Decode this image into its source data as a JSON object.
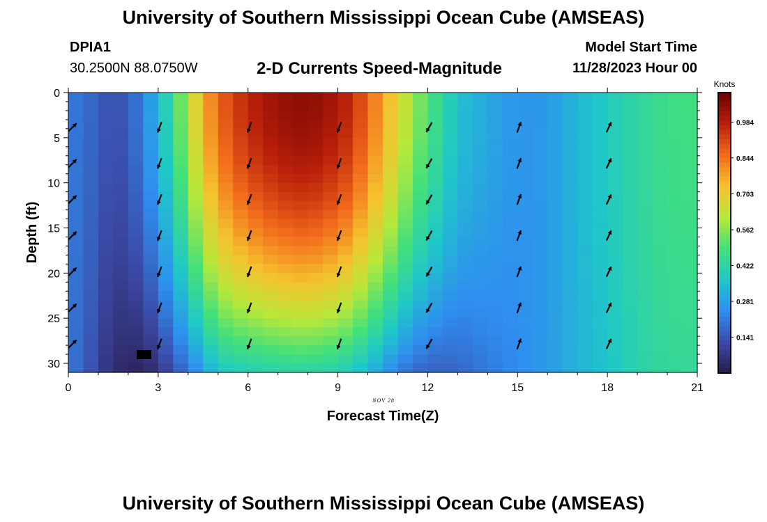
{
  "header": {
    "title": "University of Southern Mississippi Ocean Cube (AMSEAS)",
    "station": "DPIA1",
    "coordinates": "30.2500N  88.0750W",
    "plot_title": "2-D Currents Speed-Magnitude",
    "model_start_label": "Model Start Time",
    "model_start_time": "11/28/2023 Hour 00"
  },
  "footer": {
    "title": "University of Southern Mississippi Ocean Cube (AMSEAS)"
  },
  "colors": {
    "scale": [
      "#2a1a4a",
      "#3b4ba8",
      "#2f8ef0",
      "#1fc8c8",
      "#44e07a",
      "#b8e83a",
      "#f5c22e",
      "#f26a1b",
      "#b81f0a",
      "#6b0000"
    ]
  },
  "chart_data": {
    "type": "heatmap",
    "title": "2-D Currents Speed-Magnitude",
    "xlabel": "Forecast Time(Z)",
    "ylabel": "Depth (ft)",
    "date_label": "NOV 28",
    "x_ticks": [
      0,
      3,
      6,
      9,
      12,
      15,
      18,
      21
    ],
    "y_ticks": [
      0,
      5,
      10,
      15,
      20,
      25,
      30
    ],
    "xlim": [
      0,
      21
    ],
    "ylim": [
      0,
      31
    ],
    "colorbar": {
      "unit": "Knots",
      "ticks": [
        "0.984",
        "0.844",
        "0.703",
        "0.562",
        "0.422",
        "0.281",
        "0.141"
      ],
      "tick_values": [
        0.984,
        0.844,
        0.703,
        0.562,
        0.422,
        0.281,
        0.141
      ],
      "range": [
        0,
        1.1
      ]
    },
    "speed_profiles": [
      {
        "hour": 0,
        "surface": 0.2,
        "bottom": 0.2
      },
      {
        "hour": 0.5,
        "surface": 0.2,
        "bottom": 0.17
      },
      {
        "hour": 1,
        "surface": 0.15,
        "bottom": 0.1
      },
      {
        "hour": 1.5,
        "surface": 0.13,
        "bottom": 0.05
      },
      {
        "hour": 2,
        "surface": 0.15,
        "bottom": 0.03
      },
      {
        "hour": 2.5,
        "surface": 0.23,
        "bottom": 0.02
      },
      {
        "hour": 3,
        "surface": 0.33,
        "bottom": 0.07
      },
      {
        "hour": 3.5,
        "surface": 0.46,
        "bottom": 0.13
      },
      {
        "hour": 4,
        "surface": 0.6,
        "bottom": 0.2
      },
      {
        "hour": 4.5,
        "surface": 0.76,
        "bottom": 0.28
      },
      {
        "hour": 5,
        "surface": 0.86,
        "bottom": 0.36
      },
      {
        "hour": 5.5,
        "surface": 0.92,
        "bottom": 0.38
      },
      {
        "hour": 6,
        "surface": 0.97,
        "bottom": 0.39
      },
      {
        "hour": 7,
        "surface": 1.03,
        "bottom": 0.41
      },
      {
        "hour": 8,
        "surface": 1.05,
        "bottom": 0.42
      },
      {
        "hour": 9,
        "surface": 1.0,
        "bottom": 0.4
      },
      {
        "hour": 9.5,
        "surface": 0.95,
        "bottom": 0.37
      },
      {
        "hour": 10,
        "surface": 0.86,
        "bottom": 0.33
      },
      {
        "hour": 10.5,
        "surface": 0.78,
        "bottom": 0.27
      },
      {
        "hour": 11,
        "surface": 0.68,
        "bottom": 0.22
      },
      {
        "hour": 11.5,
        "surface": 0.58,
        "bottom": 0.18
      },
      {
        "hour": 12,
        "surface": 0.5,
        "bottom": 0.16
      },
      {
        "hour": 12.5,
        "surface": 0.43,
        "bottom": 0.16
      },
      {
        "hour": 13,
        "surface": 0.35,
        "bottom": 0.17
      },
      {
        "hour": 14,
        "surface": 0.3,
        "bottom": 0.21
      },
      {
        "hour": 15,
        "surface": 0.26,
        "bottom": 0.24
      },
      {
        "hour": 16,
        "surface": 0.27,
        "bottom": 0.27
      },
      {
        "hour": 17,
        "surface": 0.33,
        "bottom": 0.32
      },
      {
        "hour": 18,
        "surface": 0.38,
        "bottom": 0.36
      },
      {
        "hour": 19,
        "surface": 0.43,
        "bottom": 0.41
      },
      {
        "hour": 20,
        "surface": 0.47,
        "bottom": 0.44
      },
      {
        "hour": 21,
        "surface": 0.48,
        "bottom": 0.44
      }
    ],
    "vector_hours": [
      0,
      3,
      6,
      9,
      12,
      15,
      18
    ],
    "vector_depths": [
      4,
      8,
      12,
      16,
      20,
      24,
      28
    ],
    "vector_directions_deg": [
      45,
      200,
      200,
      200,
      210,
      20,
      25
    ]
  }
}
